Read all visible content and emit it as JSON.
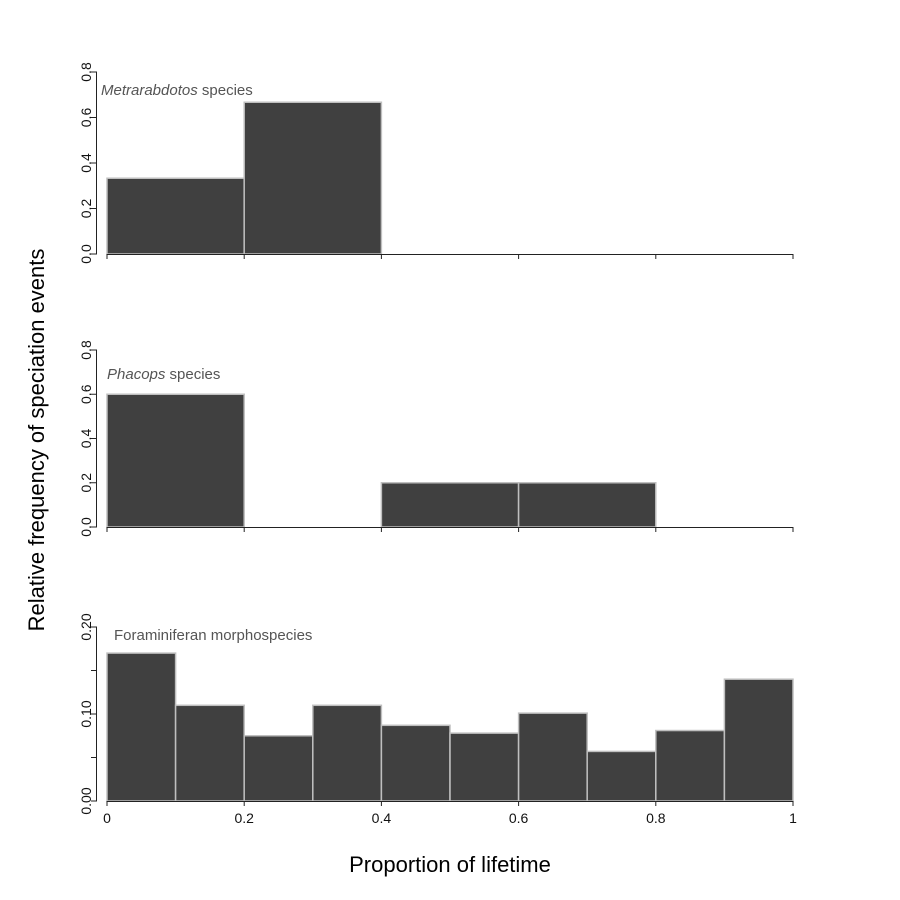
{
  "figure": {
    "ylabel": "Relative frequency of speciation events",
    "xlabel": "Proportion of lifetime",
    "x_ticks": [
      "0",
      "0.2",
      "0.4",
      "0.6",
      "0.8",
      "1"
    ],
    "colors": {
      "bar_fill": "#404040",
      "bar_edge": "#bfbfbf",
      "axis": "#222222",
      "label_text": "#555555"
    }
  },
  "chart_data": [
    {
      "type": "bar",
      "title_italic": "Metrarabdotos",
      "title_rest": " species",
      "bin_edges": [
        0,
        0.2,
        0.4,
        0.6,
        0.8,
        1.0
      ],
      "values": [
        0.333,
        0.667,
        0,
        0,
        0
      ],
      "ylim": [
        0,
        0.8
      ],
      "y_ticks": [
        "0.0",
        "0.2",
        "0.4",
        "0.6",
        "0.8"
      ],
      "xlim": [
        0,
        1
      ]
    },
    {
      "type": "bar",
      "title_italic": "Phacops",
      "title_rest": " species",
      "bin_edges": [
        0,
        0.2,
        0.4,
        0.6,
        0.8,
        1.0
      ],
      "values": [
        0.6,
        0,
        0.2,
        0.2,
        0
      ],
      "ylim": [
        0,
        0.8
      ],
      "y_ticks": [
        "0.0",
        "0.2",
        "0.4",
        "0.6",
        "0.8"
      ],
      "xlim": [
        0,
        1
      ]
    },
    {
      "type": "bar",
      "title_italic": "",
      "title_rest": "Foraminiferan morphospecies",
      "bin_edges": [
        0,
        0.1,
        0.2,
        0.3,
        0.4,
        0.5,
        0.6,
        0.7,
        0.8,
        0.9,
        1.0
      ],
      "values": [
        0.17,
        0.11,
        0.075,
        0.11,
        0.087,
        0.078,
        0.101,
        0.057,
        0.081,
        0.14
      ],
      "ylim": [
        0,
        0.2
      ],
      "y_ticks": [
        "0.00",
        "",
        "0.10",
        "",
        "0.20"
      ],
      "xlim": [
        0,
        1
      ]
    }
  ]
}
